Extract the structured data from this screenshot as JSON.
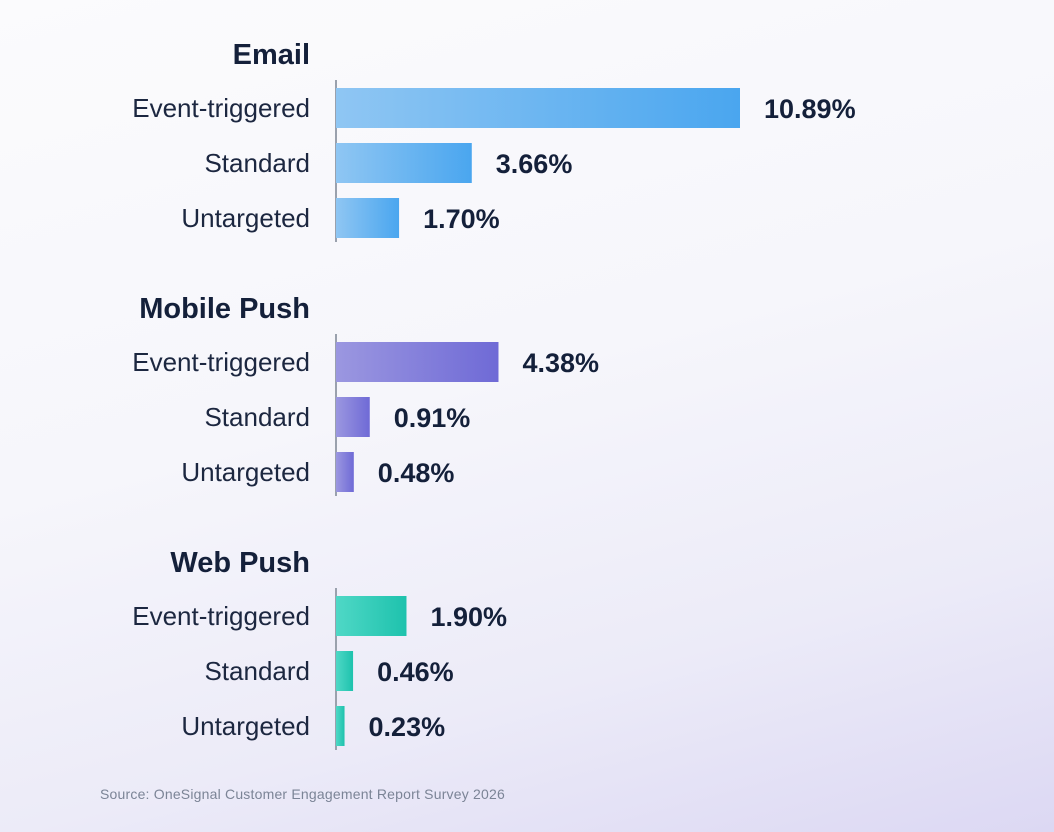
{
  "source": "Source: OneSignal Customer Engagement Report Survey 2026",
  "colors": {
    "email_start": "#8fc6f3",
    "email_end": "#4aa6ef",
    "mobile_start": "#9b97e0",
    "mobile_end": "#6f6ad6",
    "web_start": "#4fd8c6",
    "web_end": "#1ec2ad",
    "axis": "#9aa1ad"
  },
  "chart_data": {
    "type": "bar",
    "orientation": "horizontal",
    "unit": "%",
    "xlim": [
      0,
      10.89
    ],
    "groups": [
      {
        "title": "Email",
        "color_start": "#8fc6f3",
        "color_end": "#4aa6ef",
        "bars": [
          {
            "label": "Event-triggered",
            "value": 10.89,
            "text": "10.89%"
          },
          {
            "label": "Standard",
            "value": 3.66,
            "text": "3.66%"
          },
          {
            "label": "Untargeted",
            "value": 1.7,
            "text": "1.70%"
          }
        ]
      },
      {
        "title": "Mobile Push",
        "color_start": "#9b97e0",
        "color_end": "#6f6ad6",
        "bars": [
          {
            "label": "Event-triggered",
            "value": 4.38,
            "text": "4.38%"
          },
          {
            "label": "Standard",
            "value": 0.91,
            "text": "0.91%"
          },
          {
            "label": "Untargeted",
            "value": 0.48,
            "text": "0.48%"
          }
        ]
      },
      {
        "title": "Web Push",
        "color_start": "#4fd8c6",
        "color_end": "#1ec2ad",
        "bars": [
          {
            "label": "Event-triggered",
            "value": 1.9,
            "text": "1.90%"
          },
          {
            "label": "Standard",
            "value": 0.46,
            "text": "0.46%"
          },
          {
            "label": "Untargeted",
            "value": 0.23,
            "text": "0.23%"
          }
        ]
      }
    ]
  }
}
